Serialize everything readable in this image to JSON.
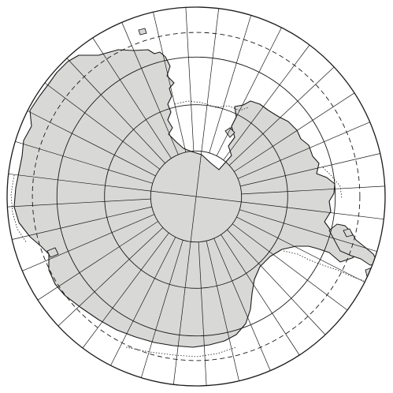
{
  "map": {
    "projection": "south-polar-stereographic",
    "center_latitude": -90,
    "outer_latitude": -50,
    "parallels_deg": [
      -80,
      -70,
      -60
    ],
    "dashed_parallel_deg": -55,
    "meridian_step_deg": 10,
    "land_color": "#d8d8d6",
    "line_color": "#1a1a1a",
    "background_color": "#ffffff"
  }
}
